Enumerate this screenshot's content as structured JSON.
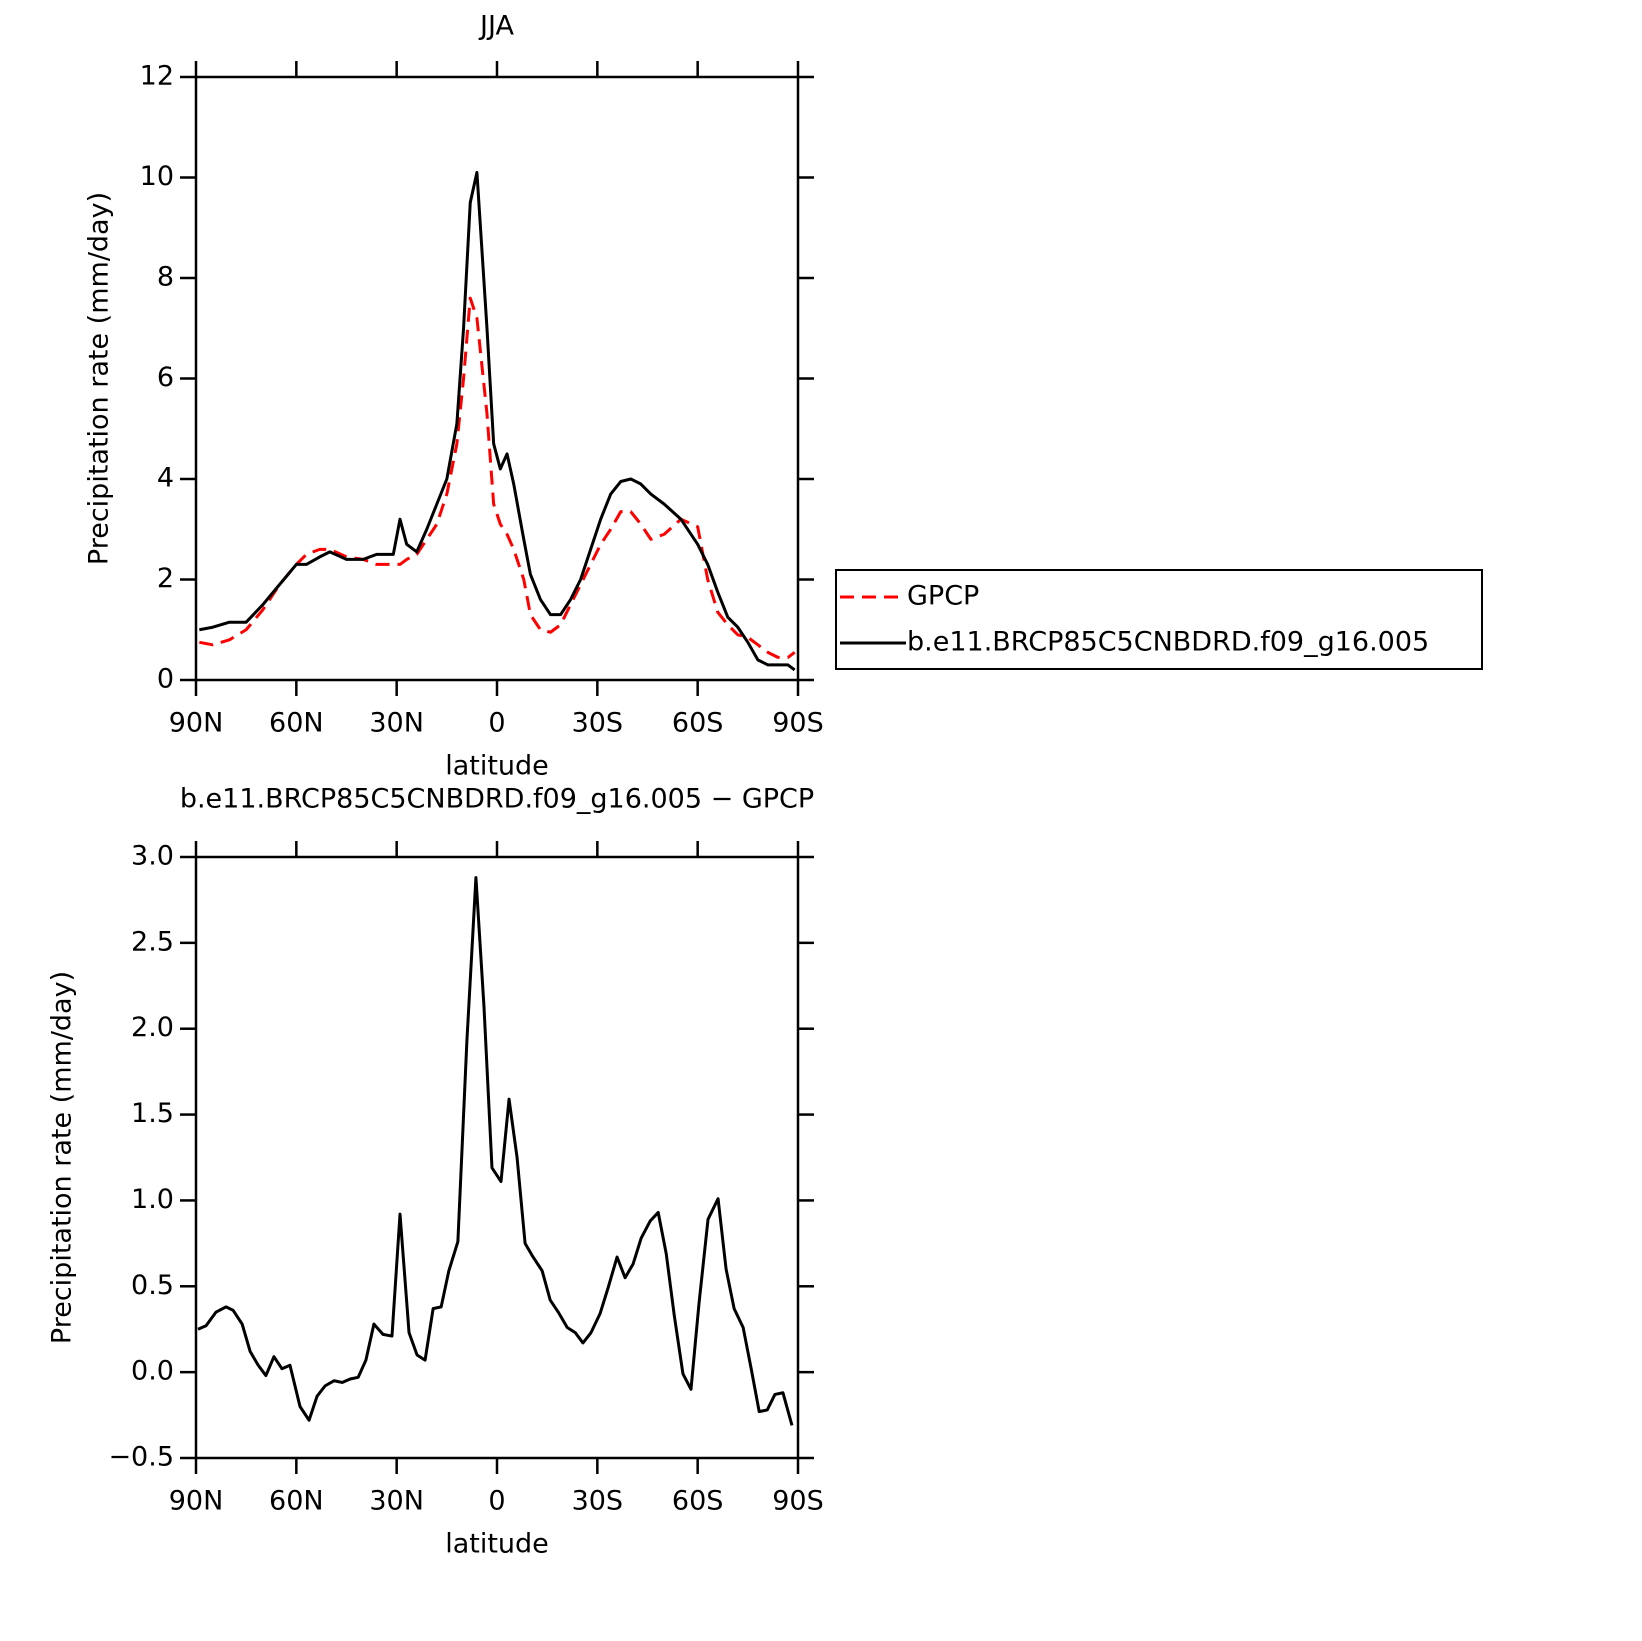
{
  "chart_data": [
    {
      "type": "line",
      "title": "JJA",
      "x_label": "latitude",
      "y_label": "Precipitation rate (mm/day)",
      "x": [
        89,
        85,
        80,
        75,
        70,
        65,
        60,
        57,
        53,
        50,
        45,
        40,
        36,
        31,
        29,
        27,
        24,
        21,
        18,
        15,
        12,
        10,
        8,
        6,
        3,
        1,
        -1,
        -3,
        -5,
        -8,
        -10,
        -13,
        -16,
        -19,
        -22,
        -25,
        -28,
        -31,
        -34,
        -37,
        -40,
        -43,
        -46,
        -50,
        -55,
        -60,
        -63,
        -66,
        -69,
        -72,
        -75,
        -78,
        -81,
        -84,
        -87,
        -89
      ],
      "series": [
        {
          "name": "GPCP",
          "color": "#ff0000",
          "line_style": "dashed",
          "values": [
            0.75,
            0.7,
            0.8,
            1.0,
            1.4,
            1.9,
            2.3,
            2.5,
            2.6,
            2.6,
            2.45,
            2.4,
            2.3,
            2.3,
            2.3,
            2.4,
            2.5,
            2.8,
            3.1,
            3.7,
            4.7,
            6.0,
            7.6,
            7.2,
            5.3,
            3.5,
            3.1,
            2.9,
            2.6,
            2.0,
            1.3,
            1.0,
            0.95,
            1.1,
            1.5,
            1.9,
            2.3,
            2.7,
            3.0,
            3.35,
            3.35,
            3.1,
            2.8,
            2.9,
            3.2,
            3.05,
            2.0,
            1.35,
            1.1,
            0.9,
            0.85,
            0.7,
            0.55,
            0.45,
            0.45,
            0.55
          ]
        },
        {
          "name": "b.e11.BRCP85C5CNBDRD.f09_g16.005",
          "color": "#000000",
          "line_style": "solid",
          "values": [
            1.0,
            1.05,
            1.15,
            1.15,
            1.5,
            1.9,
            2.3,
            2.3,
            2.45,
            2.55,
            2.4,
            2.4,
            2.5,
            2.5,
            3.2,
            2.7,
            2.55,
            3.0,
            3.5,
            4.0,
            5.1,
            7.0,
            9.5,
            10.1,
            7.0,
            4.7,
            4.2,
            4.5,
            3.9,
            2.8,
            2.1,
            1.6,
            1.3,
            1.3,
            1.6,
            2.0,
            2.6,
            3.2,
            3.7,
            3.95,
            4.0,
            3.9,
            3.7,
            3.5,
            3.2,
            2.7,
            2.3,
            1.75,
            1.25,
            1.05,
            0.75,
            0.4,
            0.3,
            0.3,
            0.3,
            0.2
          ]
        }
      ],
      "xlim": [
        90,
        -90
      ],
      "xticks": [
        {
          "value": 90,
          "label": "90N"
        },
        {
          "value": 60,
          "label": "60N"
        },
        {
          "value": 30,
          "label": "30N"
        },
        0,
        {
          "value": -30,
          "label": "30S"
        },
        {
          "value": -60,
          "label": "60S"
        },
        {
          "value": -90,
          "label": "90S"
        }
      ],
      "ylim": [
        0,
        12
      ],
      "yticks": [
        0,
        2,
        4,
        6,
        8,
        10,
        12
      ],
      "legend": "right"
    },
    {
      "type": "line",
      "title": "b.e11.BRCP85C5CNBDRD.f09_g16.005 − GPCP",
      "x_label": "latitude",
      "y_label": "Precipitation rate (mm/day)",
      "x": [
        89.4,
        87.0,
        84.0,
        81.0,
        78.9,
        76.2,
        73.8,
        71.4,
        69.1,
        66.7,
        64.3,
        61.9,
        58.9,
        56.2,
        53.8,
        51.4,
        48.7,
        46.3,
        43.9,
        41.5,
        39.2,
        36.8,
        34.1,
        31.4,
        29.0,
        26.3,
        23.9,
        21.5,
        19.1,
        16.7,
        14.4,
        11.7,
        9.0,
        6.3,
        3.9,
        1.5,
        -1.2,
        -3.6,
        -6.0,
        -8.4,
        -10.8,
        -13.5,
        -15.9,
        -18.3,
        -21.0,
        -23.4,
        -25.7,
        -28.1,
        -30.8,
        -33.2,
        -35.9,
        -38.3,
        -40.7,
        -43.1,
        -45.8,
        -48.2,
        -50.6,
        -53.0,
        -55.6,
        -58.0,
        -60.4,
        -63.1,
        -66.1,
        -68.5,
        -70.9,
        -73.6,
        -76.0,
        -78.4,
        -80.8,
        -83.1,
        -85.5,
        -88.2
      ],
      "series": [
        {
          "color": "#000000",
          "line_style": "solid",
          "values": [
            0.25,
            0.27,
            0.35,
            0.38,
            0.36,
            0.28,
            0.12,
            0.04,
            -0.02,
            0.09,
            0.02,
            0.04,
            -0.2,
            -0.28,
            -0.14,
            -0.08,
            -0.05,
            -0.06,
            -0.04,
            -0.03,
            0.07,
            0.28,
            0.22,
            0.21,
            0.92,
            0.23,
            0.1,
            0.07,
            0.37,
            0.38,
            0.59,
            0.76,
            1.93,
            2.88,
            2.13,
            1.19,
            1.11,
            1.59,
            1.25,
            0.75,
            0.67,
            0.59,
            0.42,
            0.35,
            0.26,
            0.23,
            0.17,
            0.23,
            0.34,
            0.49,
            0.67,
            0.55,
            0.63,
            0.78,
            0.88,
            0.93,
            0.69,
            0.33,
            -0.01,
            -0.1,
            0.4,
            0.89,
            1.01,
            0.6,
            0.37,
            0.26,
            0.02,
            -0.23,
            -0.22,
            -0.13,
            -0.12,
            -0.31
          ]
        }
      ],
      "xlim": [
        90,
        -90
      ],
      "xticks": [
        {
          "value": 90,
          "label": "90N"
        },
        {
          "value": 60,
          "label": "60N"
        },
        {
          "value": 30,
          "label": "30N"
        },
        0,
        {
          "value": -30,
          "label": "30S"
        },
        {
          "value": -60,
          "label": "60S"
        },
        {
          "value": -90,
          "label": "90S"
        }
      ],
      "ylim": [
        -0.5,
        3.0
      ],
      "yticks": [
        {
          "value": -0.5,
          "label": "−0.5"
        },
        {
          "value": 0,
          "label": "0.0"
        },
        0.5,
        {
          "value": 1,
          "label": "1.0"
        },
        1.5,
        {
          "value": 2,
          "label": "2.0"
        },
        2.5,
        {
          "value": 3,
          "label": "3.0"
        }
      ]
    }
  ]
}
